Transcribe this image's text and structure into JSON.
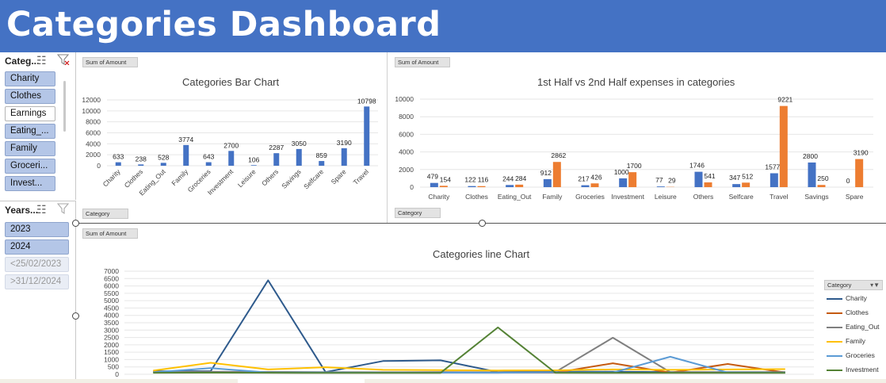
{
  "header": {
    "title": "Categories Dashboard"
  },
  "slicer_category": {
    "label": "Categ...",
    "items": [
      {
        "label": "Charity",
        "state": "sel"
      },
      {
        "label": "Clothes",
        "state": "sel"
      },
      {
        "label": "Earnings",
        "state": "unsel"
      },
      {
        "label": "Eating_...",
        "state": "sel"
      },
      {
        "label": "Family",
        "state": "sel"
      },
      {
        "label": "Groceri...",
        "state": "sel"
      },
      {
        "label": "Invest...",
        "state": "sel"
      }
    ]
  },
  "slicer_years": {
    "label": "Years...",
    "items": [
      {
        "label": "2023",
        "state": "sel"
      },
      {
        "label": "2024",
        "state": "sel"
      },
      {
        "label": "<25/02/2023",
        "state": "faded"
      },
      {
        "label": ">31/12/2024",
        "state": "faded"
      }
    ]
  },
  "fields": {
    "sum_of_amount": "Sum of Amount",
    "category": "Category"
  },
  "colors": {
    "header": "#4472c4",
    "blue": "#4472c4",
    "orange": "#ed7d31"
  },
  "chart_data": [
    {
      "type": "bar",
      "title": "Categories Bar Chart",
      "categories": [
        "Charity",
        "Clothes",
        "Eating_Out",
        "Family",
        "Groceries",
        "Investment",
        "Leisure",
        "Others",
        "Savings",
        "Selfcare",
        "Spare",
        "Travel"
      ],
      "values": [
        633,
        238,
        528,
        3774,
        643,
        2700,
        106,
        2287,
        3050,
        859,
        3190,
        10798
      ],
      "ylim": [
        0,
        12000
      ],
      "yticks": [
        0,
        2000,
        4000,
        6000,
        8000,
        10000,
        12000
      ],
      "data_labels": true
    },
    {
      "type": "bar",
      "title": "1st Half vs 2nd Half expenses in categories",
      "categories": [
        "Charity",
        "Clothes",
        "Eating_Out",
        "Family",
        "Groceries",
        "Investment",
        "Leisure",
        "Others",
        "Selfcare",
        "Travel",
        "Savings",
        "Spare"
      ],
      "series": [
        {
          "values": [
            479,
            122,
            244,
            912,
            217,
            1000,
            77,
            1746,
            347,
            1577,
            2800,
            0
          ]
        },
        {
          "values": [
            154,
            116,
            284,
            2862,
            426,
            1700,
            29,
            541,
            512,
            9221,
            250,
            3190
          ]
        }
      ],
      "ylim": [
        0,
        10000
      ],
      "yticks": [
        0,
        2000,
        4000,
        6000,
        8000,
        10000
      ],
      "data_labels": true
    },
    {
      "type": "line",
      "title": "Categories line Chart",
      "ylim": [
        0,
        7000
      ],
      "yticks": [
        0,
        500,
        1000,
        1500,
        2000,
        2500,
        3000,
        3500,
        4000,
        4500,
        5000,
        5500,
        6000,
        6500,
        7000
      ],
      "legend_title": "Category",
      "legend_position": "right",
      "series": [
        {
          "name": "Charity",
          "color": "#2e5a8c",
          "values": [
            200,
            210,
            6380,
            150,
            900,
            950,
            150,
            180,
            170,
            150,
            140,
            140
          ]
        },
        {
          "name": "Clothes",
          "color": "#c55a11",
          "values": [
            150,
            140,
            140,
            130,
            130,
            140,
            120,
            110,
            750,
            110,
            700,
            120
          ]
        },
        {
          "name": "Eating_Out",
          "color": "#7f7f7f",
          "values": [
            160,
            170,
            160,
            150,
            140,
            150,
            140,
            150,
            2480,
            140,
            150,
            150
          ]
        },
        {
          "name": "Family",
          "color": "#ffc000",
          "values": [
            250,
            780,
            330,
            480,
            300,
            280,
            260,
            270,
            330,
            300,
            330,
            350
          ]
        },
        {
          "name": "Groceries",
          "color": "#5b9bd5",
          "values": [
            130,
            420,
            120,
            120,
            110,
            110,
            100,
            130,
            120,
            1190,
            120,
            110
          ]
        },
        {
          "name": "Investment",
          "color": "#548235",
          "values": [
            100,
            110,
            100,
            90,
            90,
            90,
            3180,
            100,
            90,
            90,
            90,
            90
          ]
        }
      ]
    }
  ]
}
